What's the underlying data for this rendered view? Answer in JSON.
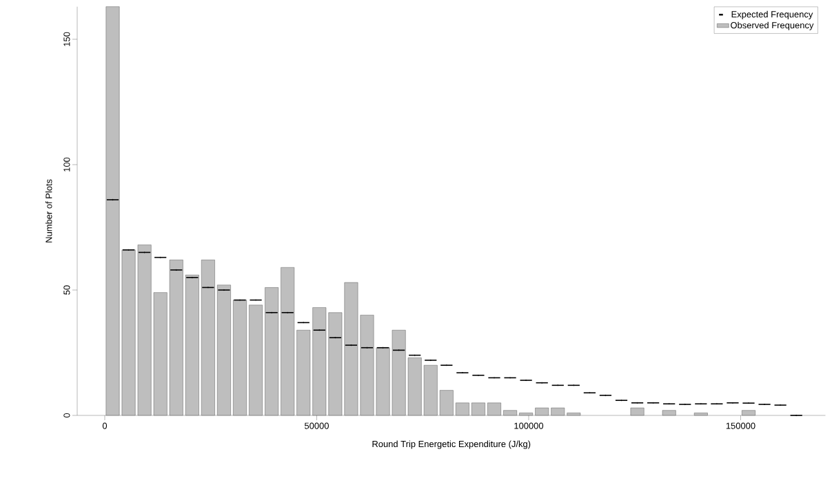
{
  "chart_data": {
    "type": "histogram",
    "xlabel": "Round Trip Energetic Expenditure (J/kg)",
    "ylabel": "Number of Plots",
    "bins": [
      0,
      3750,
      7500,
      11250,
      15000,
      18750,
      22500,
      26250,
      30000,
      33750,
      37500,
      41250,
      45000,
      48750,
      52500,
      56250,
      60000,
      63750,
      67500,
      71250,
      75000,
      78750,
      82500,
      86250,
      90000,
      93750,
      97500,
      101250,
      105000,
      108750,
      112500,
      116250,
      120000,
      123750,
      127500,
      131250,
      135000,
      138750,
      142500,
      146250,
      150000,
      153750,
      157500,
      161250,
      165000
    ],
    "series": [
      {
        "name": "Observed Frequency",
        "color": "#bebebe",
        "values": [
          163,
          66,
          68,
          49,
          62,
          56,
          62,
          52,
          46,
          44,
          51,
          59,
          34,
          43,
          41,
          53,
          40,
          27,
          34,
          23,
          20,
          10,
          5,
          5,
          5,
          2,
          1,
          3,
          3,
          1,
          0,
          0,
          0,
          3,
          0,
          2,
          0,
          1,
          0,
          0,
          2,
          0,
          0,
          0
        ]
      },
      {
        "name": "Expected Frequency",
        "type": "scatter",
        "color": "#000000",
        "x": [
          1875,
          5625,
          9375,
          13125,
          16875,
          20625,
          24375,
          28125,
          31875,
          35625,
          39375,
          43125,
          46875,
          50625,
          54375,
          58125,
          61875,
          65625,
          69375,
          73125,
          76875,
          80625,
          84375,
          88125,
          91875,
          95625,
          99375,
          103125,
          106875,
          110625,
          114375,
          118125,
          121875,
          125625,
          129375,
          133125,
          136875,
          140625,
          144375,
          148125,
          151875,
          155625,
          159375,
          163125
        ],
        "marker": "none",
        "xerrors": [
          1400,
          1400,
          1400,
          1400,
          1400,
          1400,
          1400,
          1400,
          1400,
          1400,
          1400,
          1400,
          1400,
          1400,
          1400,
          1400,
          1400,
          1400,
          1400,
          1400,
          1400,
          1400,
          1400,
          1400,
          1400,
          1400,
          1400,
          1400,
          1400,
          1400,
          1400,
          1400,
          1400,
          1400,
          1400,
          1400,
          1400,
          1400,
          1400,
          1400,
          1400,
          1400,
          1400,
          1400
        ],
        "values": [
          86,
          66,
          65,
          63,
          58,
          55,
          51,
          50,
          46,
          46,
          41,
          41,
          37,
          34,
          31,
          28,
          27,
          27,
          26,
          24,
          22,
          20,
          17,
          16,
          15,
          15,
          14,
          13,
          12,
          12,
          9,
          8,
          6,
          5,
          5,
          4.6,
          4.4,
          4.6,
          4.6,
          5,
          4.9,
          4.4,
          4.1,
          0
        ]
      }
    ],
    "xlim": [
      -6500,
      170000
    ],
    "ylim": [
      0,
      163
    ],
    "xticks": [
      0,
      50000,
      100000,
      150000
    ],
    "yticks": [
      0,
      50,
      100,
      150
    ],
    "grid": false,
    "legend": "top right"
  }
}
